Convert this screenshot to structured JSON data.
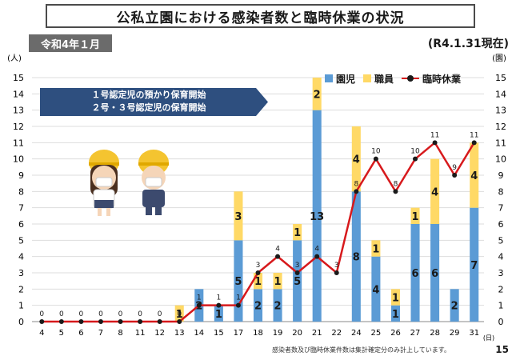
{
  "header": {
    "title": "公私立園における感染者数と臨時休業の状況",
    "period": "令和4年１月",
    "as_of": "(R4.1.31現在)"
  },
  "annotation": {
    "line1": "１号認定児の預かり保育開始",
    "line2": "２号・３号認定児の保育開始"
  },
  "illustration": {
    "desc": "children-wearing-masks"
  },
  "footnote": "感染者数及び臨時休業件数は集計確定分のみ計上しています。",
  "page_number": "15",
  "colors": {
    "children": "#5b9bd5",
    "staff": "#ffd966",
    "closures": "#d7191c",
    "arrow": "#2e4f7f"
  },
  "chart_data": {
    "type": "bar",
    "x_unit": "(日)",
    "left_axis_unit": "(人)",
    "right_axis_unit": "(園)",
    "ylim": [
      0,
      15
    ],
    "categories": [
      "4",
      "5",
      "6",
      "7",
      "8",
      "11",
      "12",
      "13",
      "14",
      "15",
      "17",
      "18",
      "19",
      "20",
      "21",
      "22",
      "24",
      "25",
      "26",
      "27",
      "28",
      "29",
      "31"
    ],
    "series": [
      {
        "name": "園児",
        "kind": "bar",
        "stack": true,
        "values": [
          0,
          0,
          0,
          0,
          0,
          0,
          0,
          0,
          2,
          1,
          5,
          2,
          2,
          5,
          13,
          0,
          8,
          4,
          1,
          6,
          6,
          2,
          7
        ]
      },
      {
        "name": "職員",
        "kind": "bar",
        "stack": true,
        "values": [
          0,
          0,
          0,
          0,
          0,
          0,
          0,
          1,
          0,
          0,
          3,
          1,
          1,
          1,
          2,
          0,
          4,
          1,
          1,
          1,
          4,
          0,
          4
        ]
      },
      {
        "name": "臨時休業",
        "kind": "line",
        "axis": "right",
        "values": [
          0,
          0,
          0,
          0,
          0,
          0,
          0,
          0,
          1,
          1,
          1,
          3,
          4,
          3,
          4,
          3,
          8,
          10,
          8,
          10,
          11,
          9,
          11
        ]
      }
    ]
  }
}
